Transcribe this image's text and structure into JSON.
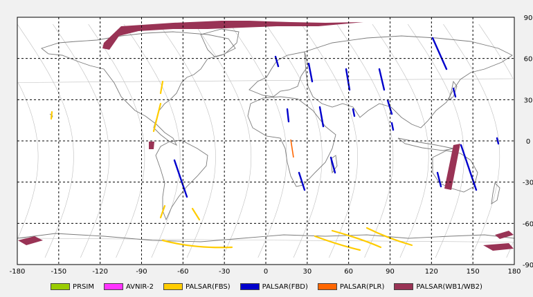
{
  "map": {
    "lon_ticks": [
      "-180",
      "-150",
      "-120",
      "-90",
      "-60",
      "-30",
      "0",
      "30",
      "60",
      "90",
      "120",
      "150",
      "180"
    ],
    "lat_ticks": [
      "90",
      "60",
      "30",
      "0",
      "-30",
      "-60",
      "-90"
    ],
    "colors": {
      "background": "#ffffff",
      "coastline": "#7a7a7a",
      "orbit": "#bdbdbd",
      "grid": "#000000"
    }
  },
  "legend": [
    {
      "label": "PRSIM",
      "color": "#99cc00"
    },
    {
      "label": "AVNIR-2",
      "color": "#ff33ff"
    },
    {
      "label": "PALSAR(FBS)",
      "color": "#ffcc00"
    },
    {
      "label": "PALSAR(FBD)",
      "color": "#0000cc"
    },
    {
      "label": "PALSAR(PLR)",
      "color": "#ff6600"
    },
    {
      "label": "PALSAR(WB1/WB2)",
      "color": "#993355"
    }
  ]
}
